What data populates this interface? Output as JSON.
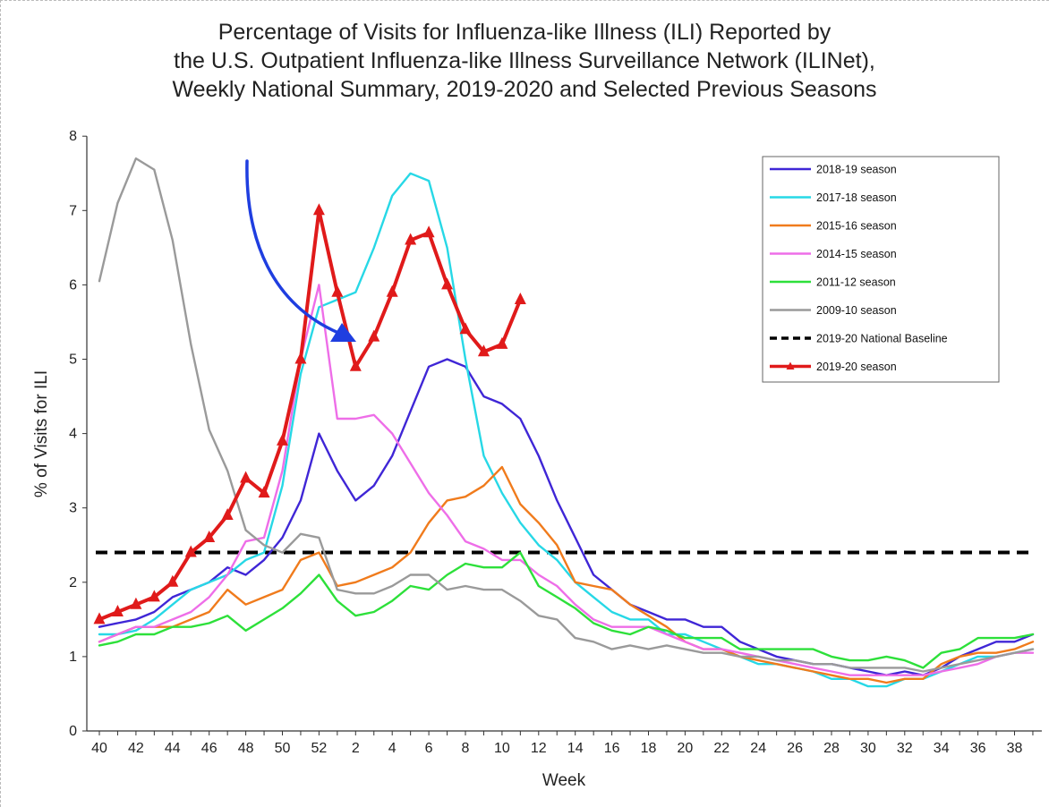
{
  "chart_data": {
    "type": "line",
    "title_lines": [
      "Percentage of Visits for Influenza-like Illness (ILI) Reported by",
      "the U.S. Outpatient Influenza-like Illness Surveillance Network (ILINet),",
      "Weekly National Summary, 2019-2020 and Selected Previous Seasons"
    ],
    "xlabel": "Week",
    "ylabel": "% of Visits for ILI",
    "ylim": [
      0,
      8
    ],
    "yticks": [
      "0",
      "1",
      "2",
      "3",
      "4",
      "5",
      "6",
      "7",
      "8"
    ],
    "x_tick_labels": [
      "40",
      "42",
      "44",
      "46",
      "48",
      "50",
      "52",
      "2",
      "4",
      "6",
      "8",
      "10",
      "12",
      "14",
      "16",
      "18",
      "20",
      "22",
      "24",
      "26",
      "28",
      "30",
      "32",
      "34",
      "36",
      "38"
    ],
    "weeks": [
      40,
      41,
      42,
      43,
      44,
      45,
      46,
      47,
      48,
      49,
      50,
      51,
      52,
      1,
      2,
      3,
      4,
      5,
      6,
      7,
      8,
      9,
      10,
      11,
      12,
      13,
      14,
      15,
      16,
      17,
      18,
      19,
      20,
      21,
      22,
      23,
      24,
      25,
      26,
      27,
      28,
      29,
      30,
      31,
      32,
      33,
      34,
      35,
      36,
      37,
      38,
      39
    ],
    "grid": false,
    "legend_position": "top-right",
    "baseline": {
      "name": "2019-20 National Baseline",
      "value": 2.4,
      "color": "#000000"
    },
    "series": [
      {
        "name": "2018-19 season",
        "color": "#3f26d6",
        "values": [
          1.4,
          1.45,
          1.5,
          1.6,
          1.8,
          1.9,
          2.0,
          2.2,
          2.1,
          2.3,
          2.6,
          3.1,
          4.0,
          3.5,
          3.1,
          3.3,
          3.7,
          4.3,
          4.9,
          5.0,
          4.9,
          4.5,
          4.4,
          4.2,
          3.7,
          3.1,
          2.6,
          2.1,
          1.9,
          1.7,
          1.6,
          1.5,
          1.5,
          1.4,
          1.4,
          1.2,
          1.1,
          1.0,
          0.95,
          0.9,
          0.9,
          0.85,
          0.8,
          0.75,
          0.8,
          0.75,
          0.85,
          1.0,
          1.1,
          1.2,
          1.2,
          1.3
        ]
      },
      {
        "name": "2017-18 season",
        "color": "#27d8e6",
        "values": [
          1.3,
          1.3,
          1.35,
          1.5,
          1.7,
          1.9,
          2.0,
          2.1,
          2.3,
          2.4,
          3.3,
          4.8,
          5.7,
          5.8,
          5.9,
          6.5,
          7.2,
          7.5,
          7.4,
          6.5,
          5.0,
          3.7,
          3.2,
          2.8,
          2.5,
          2.3,
          2.0,
          1.8,
          1.6,
          1.5,
          1.5,
          1.3,
          1.3,
          1.2,
          1.1,
          1.0,
          0.9,
          0.9,
          0.85,
          0.8,
          0.7,
          0.7,
          0.6,
          0.6,
          0.7,
          0.7,
          0.8,
          0.9,
          1.0,
          1.0,
          1.05,
          1.1
        ]
      },
      {
        "name": "2015-16 season",
        "color": "#f07b1c",
        "values": [
          1.2,
          1.3,
          1.4,
          1.4,
          1.4,
          1.5,
          1.6,
          1.9,
          1.7,
          1.8,
          1.9,
          2.3,
          2.4,
          1.95,
          2.0,
          2.1,
          2.2,
          2.4,
          2.8,
          3.1,
          3.15,
          3.3,
          3.55,
          3.05,
          2.8,
          2.5,
          2.0,
          1.95,
          1.9,
          1.7,
          1.55,
          1.4,
          1.2,
          1.1,
          1.1,
          1.0,
          0.95,
          0.9,
          0.85,
          0.8,
          0.75,
          0.7,
          0.7,
          0.65,
          0.7,
          0.7,
          0.9,
          1.0,
          1.05,
          1.05,
          1.1,
          1.2
        ]
      },
      {
        "name": "2014-15 season",
        "color": "#ee6ee8",
        "values": [
          1.2,
          1.3,
          1.4,
          1.4,
          1.5,
          1.6,
          1.8,
          2.1,
          2.55,
          2.6,
          3.5,
          5.0,
          6.0,
          4.2,
          4.2,
          4.25,
          4.0,
          3.6,
          3.2,
          2.9,
          2.55,
          2.45,
          2.3,
          2.3,
          2.1,
          1.95,
          1.7,
          1.5,
          1.4,
          1.4,
          1.4,
          1.3,
          1.2,
          1.1,
          1.1,
          1.05,
          1.0,
          0.95,
          0.9,
          0.85,
          0.8,
          0.75,
          0.75,
          0.75,
          0.75,
          0.75,
          0.8,
          0.85,
          0.9,
          1.0,
          1.05,
          1.05
        ]
      },
      {
        "name": "2011-12 season",
        "color": "#2de03a",
        "values": [
          1.15,
          1.2,
          1.3,
          1.3,
          1.4,
          1.4,
          1.45,
          1.55,
          1.35,
          1.5,
          1.65,
          1.85,
          2.1,
          1.75,
          1.55,
          1.6,
          1.75,
          1.95,
          1.9,
          2.1,
          2.25,
          2.2,
          2.2,
          2.4,
          1.95,
          1.8,
          1.65,
          1.45,
          1.35,
          1.3,
          1.4,
          1.35,
          1.25,
          1.25,
          1.25,
          1.1,
          1.1,
          1.1,
          1.1,
          1.1,
          1.0,
          0.95,
          0.95,
          1.0,
          0.95,
          0.85,
          1.05,
          1.1,
          1.25,
          1.25,
          1.25,
          1.3
        ]
      },
      {
        "name": "2009-10 season",
        "color": "#9a9a9a",
        "values": [
          6.05,
          7.1,
          7.7,
          7.55,
          6.6,
          5.2,
          4.05,
          3.5,
          2.7,
          2.5,
          2.4,
          2.65,
          2.6,
          1.9,
          1.85,
          1.85,
          1.95,
          2.1,
          2.1,
          1.9,
          1.95,
          1.9,
          1.9,
          1.75,
          1.55,
          1.5,
          1.25,
          1.2,
          1.1,
          1.15,
          1.1,
          1.15,
          1.1,
          1.05,
          1.05,
          1.0,
          1.0,
          0.95,
          0.95,
          0.9,
          0.9,
          0.85,
          0.85,
          0.85,
          0.85,
          0.8,
          0.85,
          0.9,
          0.95,
          1.0,
          1.05,
          1.1
        ]
      },
      {
        "name": "2019-20 season",
        "color": "#e01a1a",
        "values": [
          1.5,
          1.6,
          1.7,
          1.8,
          2.0,
          2.4,
          2.6,
          2.9,
          3.4,
          3.2,
          3.9,
          5.0,
          7.0,
          5.9,
          4.9,
          5.3,
          5.9,
          6.6,
          6.7,
          6.0,
          5.4,
          5.1,
          5.2,
          5.8
        ]
      }
    ],
    "annotation": {
      "kind": "arrow",
      "color": "#1f3ee0"
    }
  }
}
